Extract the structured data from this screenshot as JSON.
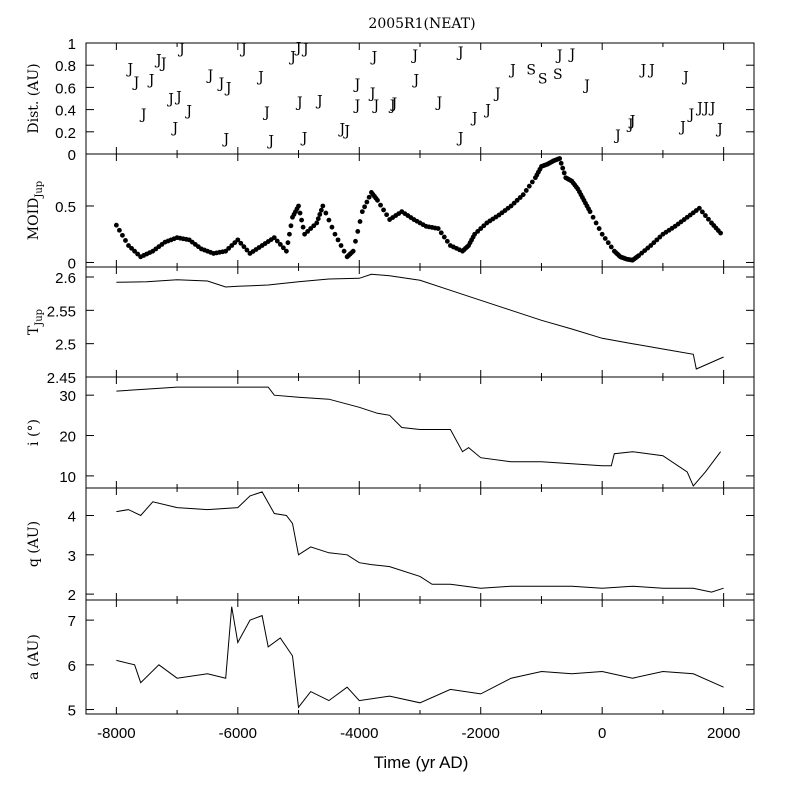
{
  "title": "2005R1(NEAT)",
  "xlabel": "Time (yr AD)",
  "x_ticks": [
    -8000,
    -6000,
    -4000,
    -2000,
    0,
    2000
  ],
  "chart_data": [
    {
      "type": "scatter",
      "ylabel": "Dist. (AU)",
      "xlim": [
        -8500,
        2500
      ],
      "ylim": [
        0,
        1
      ],
      "y_ticks": [
        0,
        0.2,
        0.4,
        0.6,
        0.8,
        1
      ],
      "y_tick_labels": [
        "0",
        "0.2",
        "0.4",
        "0.6",
        "0.8",
        "1"
      ],
      "encounters": [
        {
          "planet": "J",
          "x": -7770,
          "y": 0.77
        },
        {
          "planet": "J",
          "x": -7670,
          "y": 0.65
        },
        {
          "planet": "J",
          "x": -7550,
          "y": 0.36
        },
        {
          "planet": "J",
          "x": -7420,
          "y": 0.67
        },
        {
          "planet": "J",
          "x": -7300,
          "y": 0.85
        },
        {
          "planet": "J",
          "x": -7220,
          "y": 0.82
        },
        {
          "planet": "J",
          "x": -7100,
          "y": 0.5
        },
        {
          "planet": "J",
          "x": -7030,
          "y": 0.24
        },
        {
          "planet": "J",
          "x": -6970,
          "y": 0.52
        },
        {
          "planet": "J",
          "x": -6920,
          "y": 0.95
        },
        {
          "planet": "J",
          "x": -6800,
          "y": 0.39
        },
        {
          "planet": "J",
          "x": -6450,
          "y": 0.71
        },
        {
          "planet": "J",
          "x": -6270,
          "y": 0.64
        },
        {
          "planet": "J",
          "x": -6190,
          "y": 0.14
        },
        {
          "planet": "J",
          "x": -6150,
          "y": 0.6
        },
        {
          "planet": "J",
          "x": -5900,
          "y": 0.95
        },
        {
          "planet": "J",
          "x": -5620,
          "y": 0.7
        },
        {
          "planet": "J",
          "x": -5520,
          "y": 0.38
        },
        {
          "planet": "J",
          "x": -5450,
          "y": 0.12
        },
        {
          "planet": "J",
          "x": -5090,
          "y": 0.88
        },
        {
          "planet": "J",
          "x": -5000,
          "y": 0.96
        },
        {
          "planet": "J",
          "x": -4980,
          "y": 0.47
        },
        {
          "planet": "J",
          "x": -4900,
          "y": 0.15
        },
        {
          "planet": "J",
          "x": -4880,
          "y": 0.95
        },
        {
          "planet": "J",
          "x": -4650,
          "y": 0.48
        },
        {
          "planet": "J",
          "x": -4280,
          "y": 0.23
        },
        {
          "planet": "J",
          "x": -4200,
          "y": 0.21
        },
        {
          "planet": "J",
          "x": -4030,
          "y": 0.63
        },
        {
          "planet": "J",
          "x": -4030,
          "y": 0.44
        },
        {
          "planet": "J",
          "x": -3750,
          "y": 0.88
        },
        {
          "planet": "J",
          "x": -3780,
          "y": 0.55
        },
        {
          "planet": "J",
          "x": -3720,
          "y": 0.44
        },
        {
          "planet": "J",
          "x": -3450,
          "y": 0.44
        },
        {
          "planet": "J",
          "x": -3420,
          "y": 0.46
        },
        {
          "planet": "J",
          "x": -3080,
          "y": 0.89
        },
        {
          "planet": "J",
          "x": -3060,
          "y": 0.67
        },
        {
          "planet": "J",
          "x": -2680,
          "y": 0.47
        },
        {
          "planet": "J",
          "x": -2330,
          "y": 0.92
        },
        {
          "planet": "J",
          "x": -2330,
          "y": 0.15
        },
        {
          "planet": "J",
          "x": -2100,
          "y": 0.33
        },
        {
          "planet": "J",
          "x": -1880,
          "y": 0.4
        },
        {
          "planet": "J",
          "x": -1720,
          "y": 0.55
        },
        {
          "planet": "J",
          "x": -1470,
          "y": 0.76
        },
        {
          "planet": "S",
          "x": -1170,
          "y": 0.76
        },
        {
          "planet": "S",
          "x": -980,
          "y": 0.68
        },
        {
          "planet": "S",
          "x": -730,
          "y": 0.72
        },
        {
          "planet": "J",
          "x": -700,
          "y": 0.89
        },
        {
          "planet": "J",
          "x": -490,
          "y": 0.9
        },
        {
          "planet": "J",
          "x": -250,
          "y": 0.62
        },
        {
          "planet": "J",
          "x": 260,
          "y": 0.17
        },
        {
          "planet": "J",
          "x": 470,
          "y": 0.27
        },
        {
          "planet": "J",
          "x": 500,
          "y": 0.3
        },
        {
          "planet": "J",
          "x": 680,
          "y": 0.76
        },
        {
          "planet": "J",
          "x": 820,
          "y": 0.76
        },
        {
          "planet": "J",
          "x": 1330,
          "y": 0.25
        },
        {
          "planet": "J",
          "x": 1380,
          "y": 0.7
        },
        {
          "planet": "J",
          "x": 1470,
          "y": 0.36
        },
        {
          "planet": "J",
          "x": 1610,
          "y": 0.42
        },
        {
          "planet": "J",
          "x": 1710,
          "y": 0.42
        },
        {
          "planet": "J",
          "x": 1820,
          "y": 0.42
        },
        {
          "planet": "J",
          "x": 1940,
          "y": 0.23
        }
      ]
    },
    {
      "type": "scatter",
      "ylabel": "MOID",
      "ylabel_sub": "Jup",
      "xlim": [
        -8500,
        2500
      ],
      "ylim": [
        -0.04,
        0.96
      ],
      "y_ticks": [
        0,
        0.5
      ],
      "y_tick_labels": [
        "0",
        "0.5"
      ],
      "x": [
        -8000,
        -7800,
        -7600,
        -7400,
        -7200,
        -7000,
        -6800,
        -6600,
        -6400,
        -6200,
        -6000,
        -5800,
        -5600,
        -5400,
        -5200,
        -5100,
        -5000,
        -4900,
        -4700,
        -4600,
        -4400,
        -4200,
        -4100,
        -3950,
        -3800,
        -3700,
        -3500,
        -3300,
        -3100,
        -2900,
        -2700,
        -2500,
        -2300,
        -2200,
        -2100,
        -1900,
        -1700,
        -1500,
        -1300,
        -1100,
        -1000,
        -900,
        -800,
        -700,
        -600,
        -500,
        -400,
        -300,
        -200,
        0,
        200,
        300,
        400,
        500,
        600,
        800,
        1000,
        1200,
        1400,
        1600,
        1800,
        1950
      ],
      "y": [
        0.33,
        0.15,
        0.05,
        0.1,
        0.18,
        0.22,
        0.2,
        0.12,
        0.08,
        0.1,
        0.2,
        0.08,
        0.15,
        0.22,
        0.1,
        0.4,
        0.5,
        0.25,
        0.35,
        0.5,
        0.25,
        0.05,
        0.1,
        0.45,
        0.62,
        0.55,
        0.38,
        0.45,
        0.38,
        0.32,
        0.3,
        0.15,
        0.1,
        0.15,
        0.25,
        0.35,
        0.42,
        0.5,
        0.6,
        0.75,
        0.85,
        0.87,
        0.9,
        0.92,
        0.75,
        0.72,
        0.65,
        0.55,
        0.45,
        0.25,
        0.1,
        0.05,
        0.03,
        0.02,
        0.06,
        0.15,
        0.25,
        0.32,
        0.4,
        0.48,
        0.35,
        0.26
      ]
    },
    {
      "type": "line",
      "ylabel": "T",
      "ylabel_sub": "Jup",
      "xlim": [
        -8500,
        2500
      ],
      "ylim": [
        2.45,
        2.615
      ],
      "y_ticks": [
        2.45,
        2.5,
        2.55,
        2.6
      ],
      "y_tick_labels": [
        "2.45",
        "2.5",
        "2.55",
        "2.6"
      ],
      "x": [
        -8000,
        -7500,
        -7000,
        -6500,
        -6200,
        -6000,
        -5500,
        -5000,
        -4500,
        -4000,
        -3800,
        -3500,
        -3000,
        -2500,
        -2000,
        -1500,
        -1000,
        -500,
        0,
        500,
        1000,
        1500,
        1550,
        2000
      ],
      "y": [
        2.592,
        2.593,
        2.596,
        2.594,
        2.585,
        2.586,
        2.588,
        2.593,
        2.597,
        2.598,
        2.604,
        2.602,
        2.595,
        2.58,
        2.565,
        2.55,
        2.535,
        2.522,
        2.508,
        2.5,
        2.492,
        2.484,
        2.462,
        2.48
      ]
    },
    {
      "type": "line",
      "ylabel": "i (°)",
      "xlim": [
        -8500,
        2500
      ],
      "ylim": [
        7,
        34.5
      ],
      "y_ticks": [
        10,
        20,
        30
      ],
      "y_tick_labels": [
        "10",
        "20",
        "30"
      ],
      "x": [
        -8000,
        -7500,
        -7000,
        -6500,
        -6000,
        -5500,
        -5400,
        -5000,
        -4500,
        -4000,
        -3700,
        -3500,
        -3300,
        -3000,
        -2500,
        -2300,
        -2200,
        -2000,
        -1500,
        -1000,
        -500,
        0,
        150,
        200,
        500,
        1000,
        1400,
        1500,
        1700,
        1950
      ],
      "y": [
        31,
        31.5,
        32,
        32,
        32,
        32,
        30,
        29.5,
        29,
        27,
        25.5,
        25,
        22,
        21.5,
        21.5,
        16,
        17,
        14.5,
        13.5,
        13.5,
        13,
        12.5,
        12.5,
        15.5,
        16,
        15,
        11,
        7.5,
        11,
        16
      ]
    },
    {
      "type": "line",
      "ylabel": "q (AU)",
      "xlim": [
        -8500,
        2500
      ],
      "ylim": [
        1.85,
        4.7
      ],
      "y_ticks": [
        2,
        3,
        4
      ],
      "y_tick_labels": [
        "2",
        "3",
        "4"
      ],
      "x": [
        -8000,
        -7800,
        -7600,
        -7400,
        -7000,
        -6500,
        -6000,
        -5800,
        -5600,
        -5400,
        -5200,
        -5100,
        -5000,
        -4800,
        -4500,
        -4200,
        -4000,
        -3800,
        -3500,
        -3000,
        -2800,
        -2500,
        -2000,
        -1500,
        -1000,
        -500,
        0,
        500,
        1000,
        1500,
        1800,
        2000
      ],
      "y": [
        4.1,
        4.15,
        4.0,
        4.35,
        4.2,
        4.15,
        4.2,
        4.5,
        4.6,
        4.05,
        4.0,
        3.8,
        3.0,
        3.2,
        3.05,
        3.0,
        2.8,
        2.75,
        2.7,
        2.45,
        2.25,
        2.25,
        2.15,
        2.2,
        2.2,
        2.2,
        2.15,
        2.2,
        2.15,
        2.15,
        2.05,
        2.15
      ]
    },
    {
      "type": "line",
      "ylabel": "a (AU)",
      "xlim": [
        -8500,
        2500
      ],
      "ylim": [
        4.9,
        7.45
      ],
      "y_ticks": [
        5,
        6,
        7
      ],
      "y_tick_labels": [
        "5",
        "6",
        "7"
      ],
      "x": [
        -8000,
        -7700,
        -7600,
        -7300,
        -7000,
        -6500,
        -6200,
        -6100,
        -6000,
        -5800,
        -5600,
        -5500,
        -5300,
        -5100,
        -5000,
        -4800,
        -4500,
        -4200,
        -4000,
        -3500,
        -3000,
        -2500,
        -2000,
        -1500,
        -1000,
        -500,
        0,
        500,
        1000,
        1500,
        2000
      ],
      "y": [
        6.1,
        6.0,
        5.6,
        6.0,
        5.7,
        5.8,
        5.7,
        7.3,
        6.5,
        7.0,
        7.1,
        6.4,
        6.6,
        6.2,
        5.05,
        5.4,
        5.2,
        5.5,
        5.2,
        5.3,
        5.15,
        5.45,
        5.35,
        5.7,
        5.85,
        5.8,
        5.85,
        5.7,
        5.85,
        5.8,
        5.5
      ]
    }
  ]
}
